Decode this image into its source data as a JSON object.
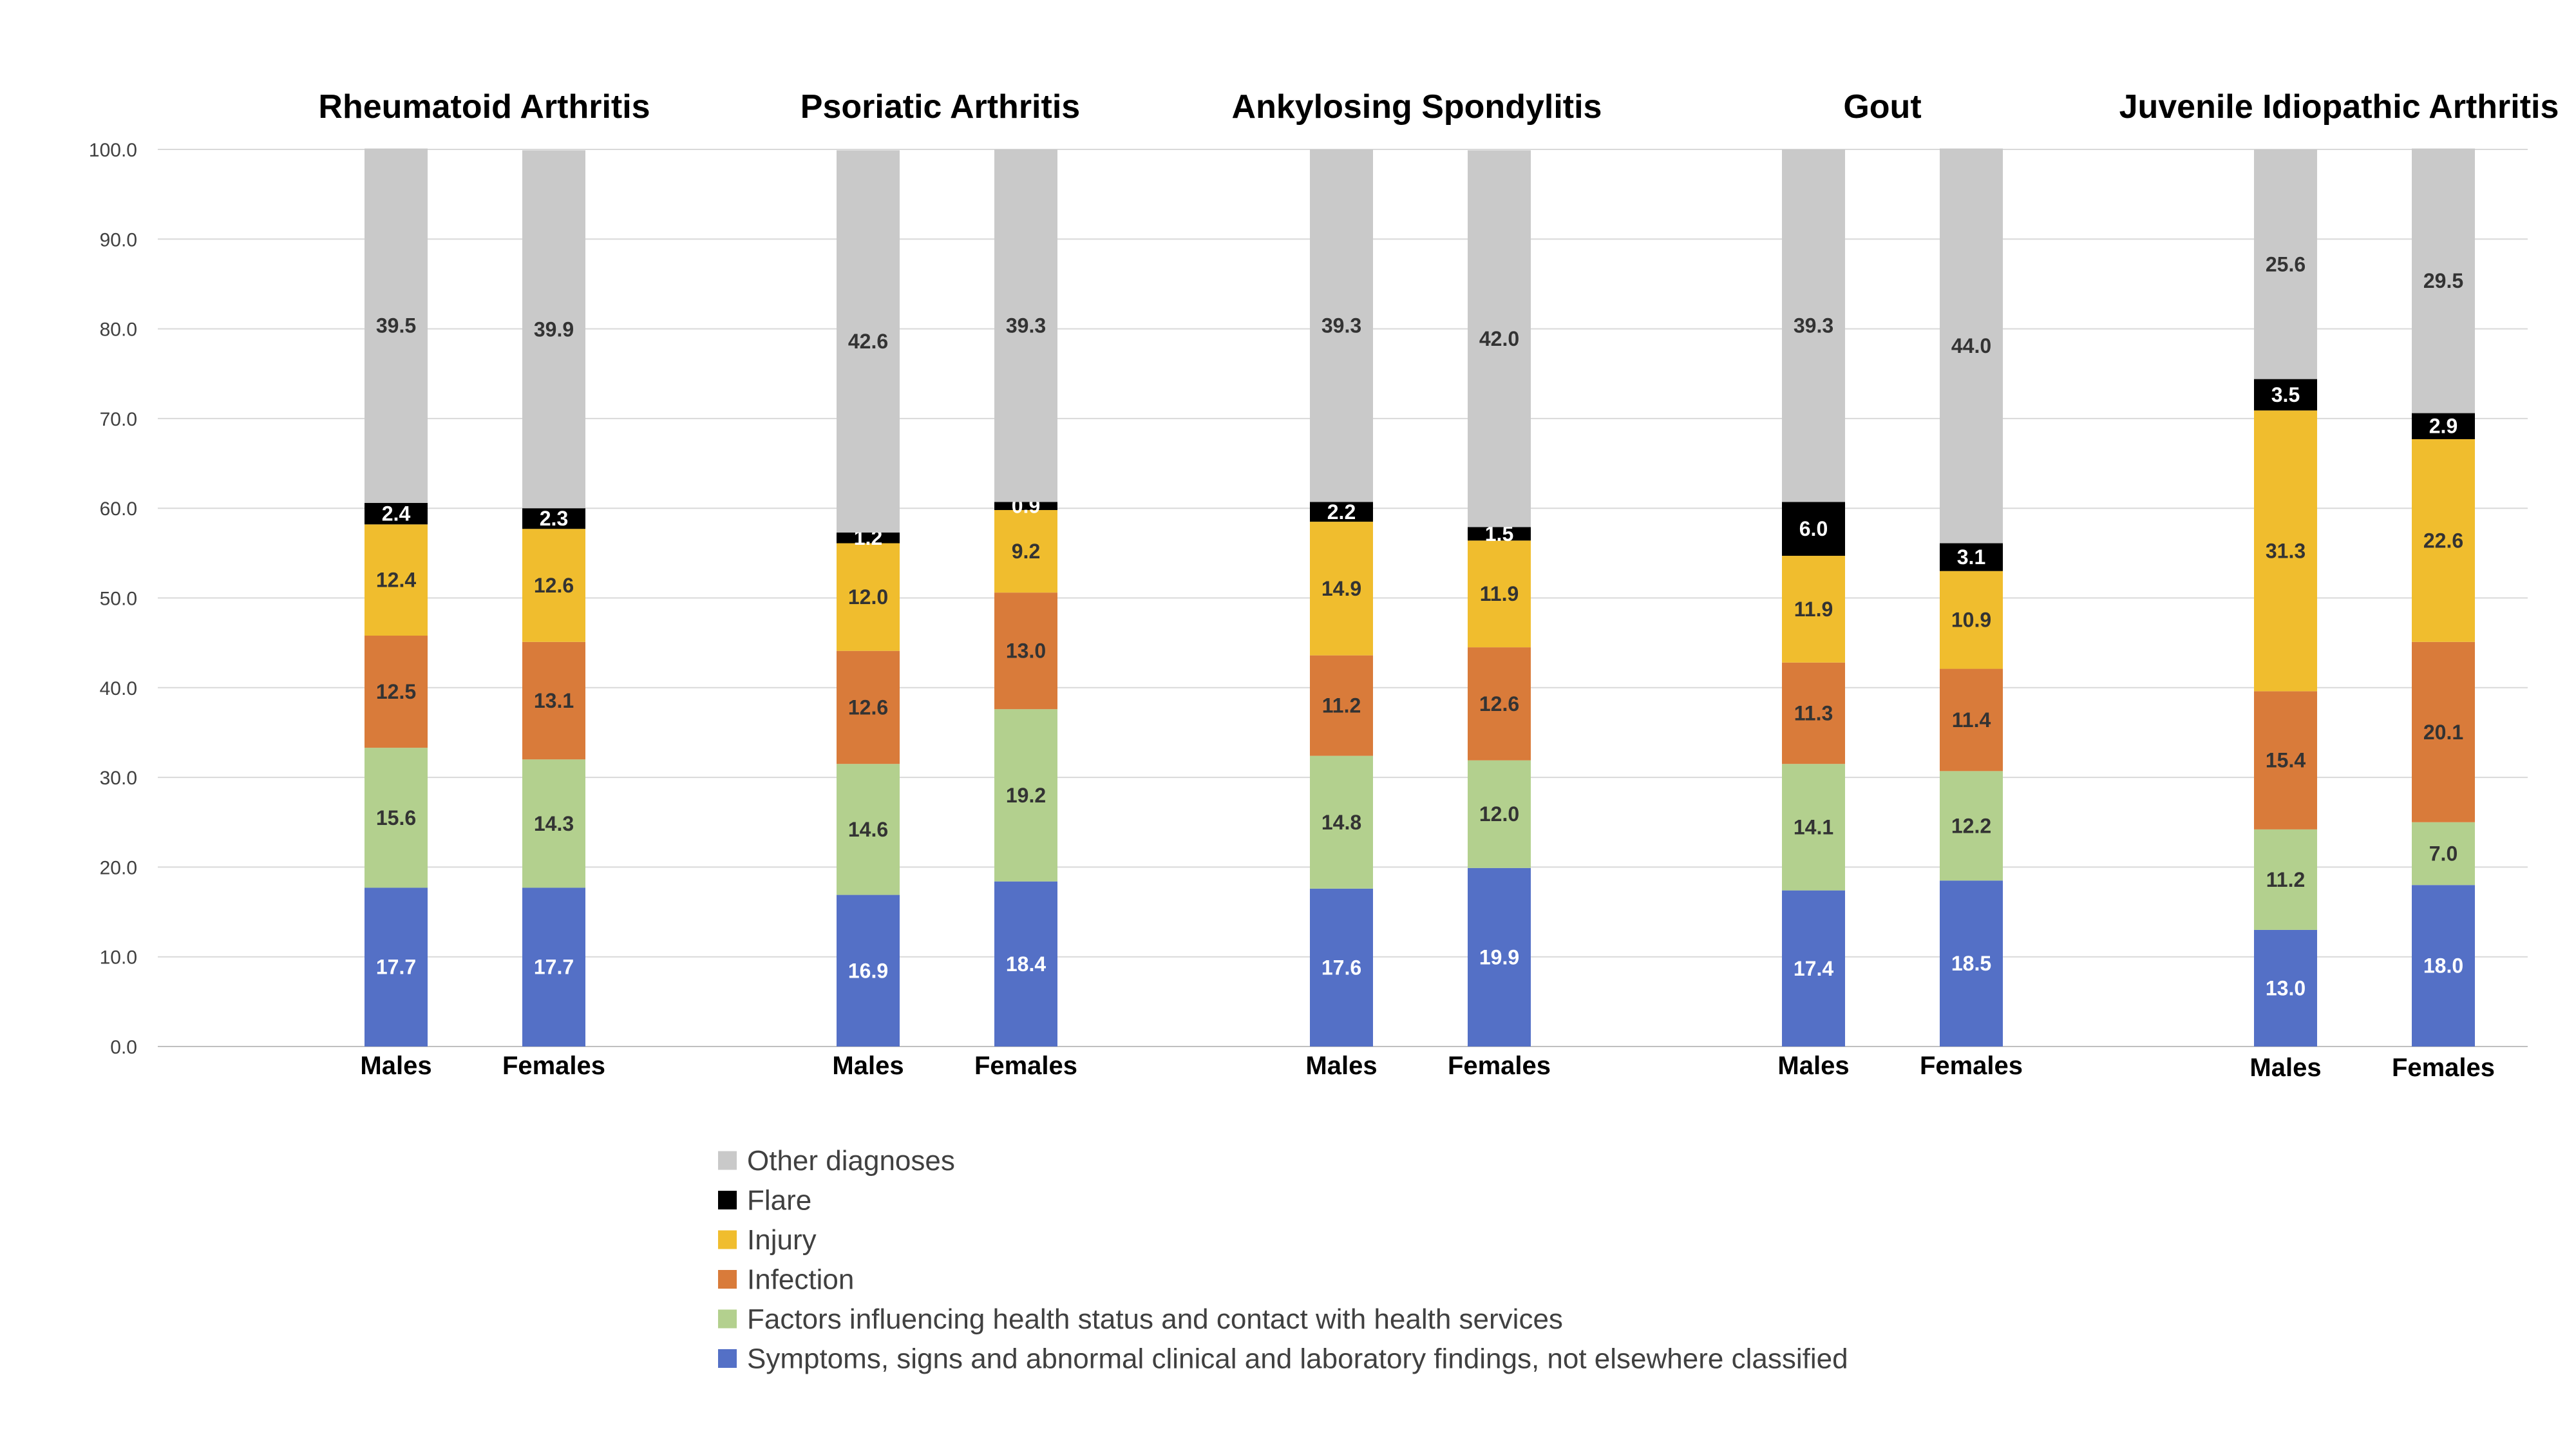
{
  "chart_data": {
    "type": "bar",
    "stacked": true,
    "ylim": [
      0,
      100
    ],
    "y_ticks": [
      "0.0",
      "10.0",
      "20.0",
      "30.0",
      "40.0",
      "50.0",
      "60.0",
      "70.0",
      "80.0",
      "90.0",
      "100.0"
    ],
    "grid": true,
    "legend_position": "bottom",
    "groups": [
      {
        "title": "Rheumatoid Arthritis",
        "bars": [
          {
            "label": "Males",
            "values": [
              17.7,
              15.6,
              12.5,
              12.4,
              2.4,
              39.5
            ],
            "labels": [
              "17.7",
              "15.6",
              "12.5",
              "12.4",
              "2.4",
              "39.5"
            ]
          },
          {
            "label": "Females",
            "values": [
              17.7,
              14.3,
              13.1,
              12.6,
              2.3,
              39.9
            ],
            "labels": [
              "17.7",
              "14.3",
              "13.1",
              "12.6",
              "2.3",
              "39.9"
            ]
          }
        ]
      },
      {
        "title": "Psoriatic Arthritis",
        "bars": [
          {
            "label": "Males",
            "values": [
              16.9,
              14.6,
              12.6,
              12.0,
              1.2,
              42.6
            ],
            "labels": [
              "16.9",
              "14.6",
              "12.6",
              "12.0",
              "1.2",
              "42.6"
            ]
          },
          {
            "label": "Females",
            "values": [
              18.4,
              19.2,
              13.0,
              9.2,
              0.9,
              39.3
            ],
            "labels": [
              "18.4",
              "19.2",
              "13.0",
              "9.2",
              "0.9",
              "39.3"
            ]
          }
        ]
      },
      {
        "title": "Ankylosing Spondylitis",
        "bars": [
          {
            "label": "Males",
            "values": [
              17.6,
              14.8,
              11.2,
              14.9,
              2.2,
              39.3
            ],
            "labels": [
              "17.6",
              "14.8",
              "11.2",
              "14.9",
              "2.2",
              "39.3"
            ]
          },
          {
            "label": "Females",
            "values": [
              19.9,
              12.0,
              12.6,
              11.9,
              1.5,
              42.0
            ],
            "labels": [
              "19.9",
              "12.0",
              "12.6",
              "11.9",
              "1.5",
              "42.0"
            ]
          }
        ]
      },
      {
        "title": "Gout",
        "bars": [
          {
            "label": "Males",
            "values": [
              17.4,
              14.1,
              11.3,
              11.9,
              6.0,
              39.3
            ],
            "labels": [
              "17.4",
              "14.1",
              "11.3",
              "11.9",
              "6.0",
              "39.3"
            ]
          },
          {
            "label": "Females",
            "values": [
              18.5,
              12.2,
              11.4,
              10.9,
              3.1,
              44.0
            ],
            "labels": [
              "18.5",
              "12.2",
              "11.4",
              "10.9",
              "3.1",
              "44.0"
            ]
          }
        ]
      },
      {
        "title": "Juvenile Idiopathic Arthritis",
        "bars": [
          {
            "label": "Males",
            "values": [
              13.0,
              11.2,
              15.4,
              31.3,
              3.5,
              25.6
            ],
            "labels": [
              "13.0",
              "11.2",
              "15.4",
              "31.3",
              "3.5",
              "25.6"
            ]
          },
          {
            "label": "Females",
            "values": [
              18.0,
              7.0,
              20.1,
              22.6,
              2.9,
              29.5
            ],
            "labels": [
              "18.0",
              "7.0",
              "20.1",
              "22.6",
              "2.9",
              "29.5"
            ]
          }
        ]
      }
    ],
    "series": [
      {
        "name": "Symptoms, signs and abnormal clinical and laboratory findings, not elsewhere classified",
        "color": "#5470c6",
        "label_color": "#ffffff"
      },
      {
        "name": "Factors influencing health status and contact with health services",
        "color": "#b3d08e",
        "label_color": "#333333"
      },
      {
        "name": "Infection",
        "color": "#d97b3a",
        "label_color": "#333333"
      },
      {
        "name": "Injury",
        "color": "#f0bd2e",
        "label_color": "#333333"
      },
      {
        "name": "Flare",
        "color": "#000000",
        "label_color": "#ffffff"
      },
      {
        "name": "Other diagnoses",
        "color": "#c9c9c9",
        "label_color": "#333333"
      }
    ],
    "legend_order": [
      "Other diagnoses",
      "Flare",
      "Injury",
      "Infection",
      "Factors influencing health status and contact with health services",
      "Symptoms, signs and abnormal clinical and laboratory findings, not elsewhere classified"
    ]
  }
}
